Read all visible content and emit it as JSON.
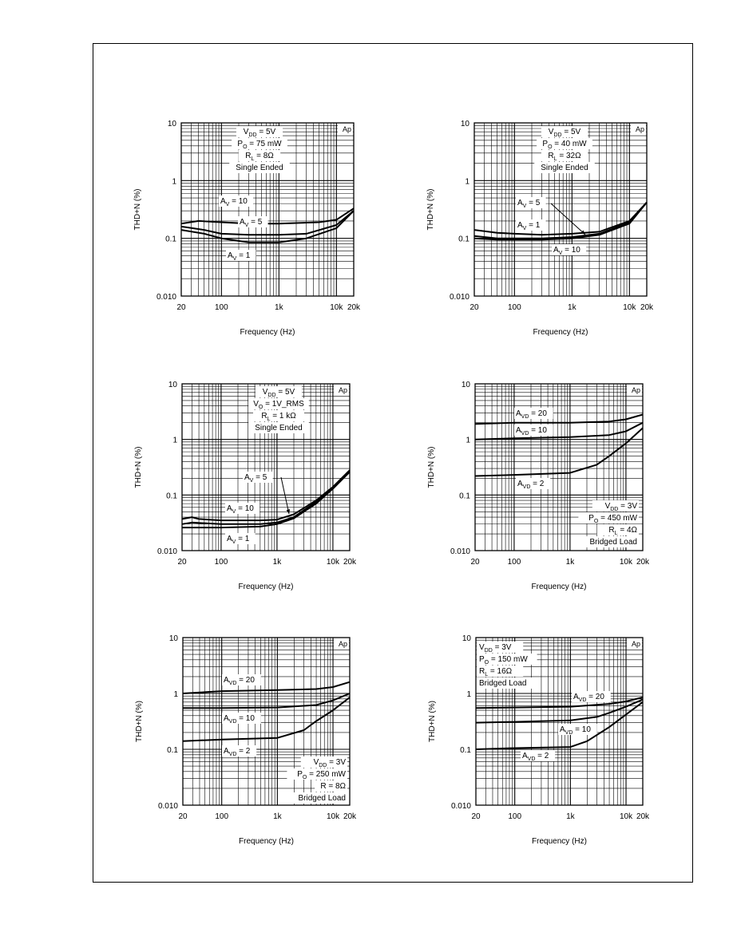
{
  "chart_data": [
    {
      "type": "line",
      "xlabel": "Frequency (Hz)",
      "ylabel": "THD+N (%)",
      "x_scale": "log",
      "y_scale": "log",
      "xlim": [
        20,
        20000
      ],
      "ylim": [
        0.01,
        10
      ],
      "x_ticks": [
        {
          "v": 20,
          "t": "20"
        },
        {
          "v": 100,
          "t": "100"
        },
        {
          "v": 1000,
          "t": "1k"
        },
        {
          "v": 10000,
          "t": "10k"
        },
        {
          "v": 20000,
          "t": "20k"
        }
      ],
      "y_ticks": [
        {
          "v": 10,
          "t": "10"
        },
        {
          "v": 1,
          "t": "1"
        },
        {
          "v": 0.1,
          "t": "0.1"
        },
        {
          "v": 0.01,
          "t": "0.010"
        }
      ],
      "badge": "Ap",
      "conditions": [
        "V_DD = 5V",
        "P_O = 75 mW",
        "R_L = 8Ω",
        "Single Ended"
      ],
      "series": [
        {
          "name": "AV = 10",
          "points": [
            [
              20,
              0.18
            ],
            [
              40,
              0.2
            ],
            [
              100,
              0.19
            ],
            [
              300,
              0.18
            ],
            [
              1000,
              0.18
            ],
            [
              5000,
              0.19
            ],
            [
              10000,
              0.21
            ],
            [
              20000,
              0.33
            ]
          ]
        },
        {
          "name": "AV = 5",
          "points": [
            [
              20,
              0.16
            ],
            [
              50,
              0.14
            ],
            [
              100,
              0.12
            ],
            [
              300,
              0.115
            ],
            [
              1000,
              0.115
            ],
            [
              3000,
              0.12
            ],
            [
              10000,
              0.17
            ],
            [
              20000,
              0.3
            ]
          ]
        },
        {
          "name": "AV = 1",
          "points": [
            [
              20,
              0.14
            ],
            [
              50,
              0.12
            ],
            [
              100,
              0.1
            ],
            [
              300,
              0.085
            ],
            [
              1000,
              0.085
            ],
            [
              3000,
              0.1
            ],
            [
              10000,
              0.15
            ],
            [
              20000,
              0.3
            ]
          ]
        }
      ]
    },
    {
      "type": "line",
      "xlabel": "Frequency (Hz)",
      "ylabel": "THD+N (%)",
      "x_scale": "log",
      "y_scale": "log",
      "xlim": [
        20,
        20000
      ],
      "ylim": [
        0.01,
        10
      ],
      "x_ticks": [
        {
          "v": 20,
          "t": "20"
        },
        {
          "v": 100,
          "t": "100"
        },
        {
          "v": 1000,
          "t": "1k"
        },
        {
          "v": 10000,
          "t": "10k"
        },
        {
          "v": 20000,
          "t": "20k"
        }
      ],
      "y_ticks": [
        {
          "v": 10,
          "t": "10"
        },
        {
          "v": 1,
          "t": "1"
        },
        {
          "v": 0.1,
          "t": "0.1"
        },
        {
          "v": 0.01,
          "t": "0.010"
        }
      ],
      "badge": "Ap",
      "conditions": [
        "V_DD = 5V",
        "P_O = 40 mW",
        "R_L = 32Ω",
        "Single Ended"
      ],
      "series": [
        {
          "name": "AV = 5",
          "points": [
            [
              20,
              0.14
            ],
            [
              50,
              0.125
            ],
            [
              100,
              0.12
            ],
            [
              300,
              0.115
            ],
            [
              1000,
              0.12
            ],
            [
              3000,
              0.13
            ],
            [
              10000,
              0.2
            ],
            [
              20000,
              0.42
            ]
          ]
        },
        {
          "name": "AV = 1",
          "points": [
            [
              20,
              0.11
            ],
            [
              50,
              0.1
            ],
            [
              100,
              0.1
            ],
            [
              300,
              0.1
            ],
            [
              1000,
              0.105
            ],
            [
              3000,
              0.12
            ],
            [
              10000,
              0.19
            ],
            [
              20000,
              0.42
            ]
          ]
        },
        {
          "name": "AV = 10",
          "points": [
            [
              20,
              0.1
            ],
            [
              50,
              0.095
            ],
            [
              100,
              0.095
            ],
            [
              300,
              0.095
            ],
            [
              1000,
              0.1
            ],
            [
              3000,
              0.115
            ],
            [
              10000,
              0.18
            ],
            [
              20000,
              0.42
            ]
          ]
        }
      ]
    },
    {
      "type": "line",
      "xlabel": "Frequency (Hz)",
      "ylabel": "THD+N (%)",
      "x_scale": "log",
      "y_scale": "log",
      "xlim": [
        20,
        20000
      ],
      "ylim": [
        0.01,
        10
      ],
      "x_ticks": [
        {
          "v": 20,
          "t": "20"
        },
        {
          "v": 100,
          "t": "100"
        },
        {
          "v": 1000,
          "t": "1k"
        },
        {
          "v": 10000,
          "t": "10k"
        },
        {
          "v": 20000,
          "t": "20k"
        }
      ],
      "y_ticks": [
        {
          "v": 10,
          "t": "10"
        },
        {
          "v": 1,
          "t": "1"
        },
        {
          "v": 0.1,
          "t": "0.1"
        },
        {
          "v": 0.01,
          "t": "0.010"
        }
      ],
      "badge": "Ap",
      "conditions": [
        "V_DD = 5V",
        "V_O = 1V_RMS",
        "R_L = 1 kΩ",
        "Single Ended"
      ],
      "series": [
        {
          "name": "AV = 10",
          "points": [
            [
              20,
              0.037
            ],
            [
              30,
              0.04
            ],
            [
              40,
              0.037
            ],
            [
              100,
              0.035
            ],
            [
              500,
              0.035
            ],
            [
              1000,
              0.036
            ],
            [
              2000,
              0.045
            ],
            [
              5000,
              0.08
            ],
            [
              10000,
              0.14
            ],
            [
              20000,
              0.28
            ]
          ]
        },
        {
          "name": "AV = 5",
          "points": [
            [
              20,
              0.03
            ],
            [
              30,
              0.032
            ],
            [
              100,
              0.03
            ],
            [
              500,
              0.03
            ],
            [
              1000,
              0.032
            ],
            [
              2000,
              0.04
            ],
            [
              5000,
              0.075
            ],
            [
              10000,
              0.13
            ],
            [
              20000,
              0.27
            ]
          ]
        },
        {
          "name": "AV = 1",
          "points": [
            [
              20,
              0.026
            ],
            [
              100,
              0.026
            ],
            [
              500,
              0.027
            ],
            [
              1000,
              0.03
            ],
            [
              2000,
              0.038
            ],
            [
              5000,
              0.07
            ],
            [
              10000,
              0.13
            ],
            [
              20000,
              0.26
            ]
          ]
        }
      ]
    },
    {
      "type": "line",
      "xlabel": "Frequency (Hz)",
      "ylabel": "THD+N (%)",
      "x_scale": "log",
      "y_scale": "log",
      "xlim": [
        20,
        20000
      ],
      "ylim": [
        0.01,
        10
      ],
      "x_ticks": [
        {
          "v": 20,
          "t": "20"
        },
        {
          "v": 100,
          "t": "100"
        },
        {
          "v": 1000,
          "t": "1k"
        },
        {
          "v": 10000,
          "t": "10k"
        },
        {
          "v": 20000,
          "t": "20k"
        }
      ],
      "y_ticks": [
        {
          "v": 10,
          "t": "10"
        },
        {
          "v": 1,
          "t": "1"
        },
        {
          "v": 0.1,
          "t": "0.1"
        },
        {
          "v": 0.01,
          "t": "0.010"
        }
      ],
      "badge": "Ap",
      "conditions": [
        "V_DD = 3V",
        "P_O = 450 mW",
        "R_L = 4Ω",
        "Bridged Load"
      ],
      "series": [
        {
          "name": "AVD = 20",
          "points": [
            [
              20,
              1.9
            ],
            [
              100,
              2.0
            ],
            [
              1000,
              2.0
            ],
            [
              5000,
              2.1
            ],
            [
              10000,
              2.3
            ],
            [
              20000,
              2.8
            ]
          ]
        },
        {
          "name": "AVD = 10",
          "points": [
            [
              20,
              1.0
            ],
            [
              100,
              1.05
            ],
            [
              1000,
              1.1
            ],
            [
              5000,
              1.2
            ],
            [
              10000,
              1.4
            ],
            [
              20000,
              2.0
            ]
          ]
        },
        {
          "name": "AVD = 2",
          "points": [
            [
              20,
              0.22
            ],
            [
              100,
              0.23
            ],
            [
              1000,
              0.25
            ],
            [
              3000,
              0.35
            ],
            [
              5000,
              0.5
            ],
            [
              10000,
              0.85
            ],
            [
              20000,
              1.6
            ]
          ]
        }
      ]
    },
    {
      "type": "line",
      "xlabel": "Frequency (Hz)",
      "ylabel": "THD+N (%)",
      "x_scale": "log",
      "y_scale": "log",
      "xlim": [
        20,
        20000
      ],
      "ylim": [
        0.01,
        10
      ],
      "x_ticks": [
        {
          "v": 20,
          "t": "20"
        },
        {
          "v": 100,
          "t": "100"
        },
        {
          "v": 1000,
          "t": "1k"
        },
        {
          "v": 10000,
          "t": "10k"
        },
        {
          "v": 20000,
          "t": "20k"
        }
      ],
      "y_ticks": [
        {
          "v": 10,
          "t": "10"
        },
        {
          "v": 1,
          "t": "1"
        },
        {
          "v": 0.1,
          "t": "0.1"
        },
        {
          "v": 0.01,
          "t": "0.010"
        }
      ],
      "badge": "Ap",
      "conditions": [
        "V_DD = 3V",
        "P_O = 250 mW",
        "R = 8Ω",
        "Bridged Load"
      ],
      "series": [
        {
          "name": "AVD = 20",
          "points": [
            [
              20,
              1.0
            ],
            [
              100,
              1.1
            ],
            [
              1000,
              1.15
            ],
            [
              5000,
              1.2
            ],
            [
              10000,
              1.3
            ],
            [
              20000,
              1.6
            ]
          ]
        },
        {
          "name": "AVD = 10",
          "points": [
            [
              20,
              0.55
            ],
            [
              100,
              0.55
            ],
            [
              1000,
              0.56
            ],
            [
              5000,
              0.62
            ],
            [
              10000,
              0.75
            ],
            [
              20000,
              1.0
            ]
          ]
        },
        {
          "name": "AVD = 2",
          "points": [
            [
              20,
              0.14
            ],
            [
              100,
              0.15
            ],
            [
              1000,
              0.16
            ],
            [
              3000,
              0.22
            ],
            [
              5000,
              0.32
            ],
            [
              10000,
              0.5
            ],
            [
              20000,
              0.85
            ]
          ]
        }
      ]
    },
    {
      "type": "line",
      "xlabel": "Frequency (Hz)",
      "ylabel": "THD+N (%)",
      "x_scale": "log",
      "y_scale": "log",
      "xlim": [
        20,
        20000
      ],
      "ylim": [
        0.01,
        10
      ],
      "x_ticks": [
        {
          "v": 20,
          "t": "20"
        },
        {
          "v": 100,
          "t": "100"
        },
        {
          "v": 1000,
          "t": "1k"
        },
        {
          "v": 10000,
          "t": "10k"
        },
        {
          "v": 20000,
          "t": "20k"
        }
      ],
      "y_ticks": [
        {
          "v": 10,
          "t": "10"
        },
        {
          "v": 1,
          "t": "1"
        },
        {
          "v": 0.1,
          "t": "0.1"
        },
        {
          "v": 0.01,
          "t": "0.010"
        }
      ],
      "badge": "Ap",
      "conditions": [
        "V_DD = 3V",
        "P_O = 150 mW",
        "R_L = 16Ω",
        "Bridged Load"
      ],
      "series": [
        {
          "name": "AVD = 20",
          "points": [
            [
              20,
              0.55
            ],
            [
              100,
              0.56
            ],
            [
              1000,
              0.58
            ],
            [
              5000,
              0.65
            ],
            [
              10000,
              0.72
            ],
            [
              20000,
              0.85
            ]
          ]
        },
        {
          "name": "AVD = 10",
          "points": [
            [
              20,
              0.3
            ],
            [
              100,
              0.31
            ],
            [
              1000,
              0.33
            ],
            [
              3000,
              0.38
            ],
            [
              5000,
              0.45
            ],
            [
              10000,
              0.58
            ],
            [
              20000,
              0.78
            ]
          ]
        },
        {
          "name": "AVD = 2",
          "points": [
            [
              20,
              0.1
            ],
            [
              100,
              0.105
            ],
            [
              1000,
              0.11
            ],
            [
              2000,
              0.14
            ],
            [
              5000,
              0.25
            ],
            [
              10000,
              0.42
            ],
            [
              20000,
              0.7
            ]
          ]
        }
      ]
    }
  ]
}
